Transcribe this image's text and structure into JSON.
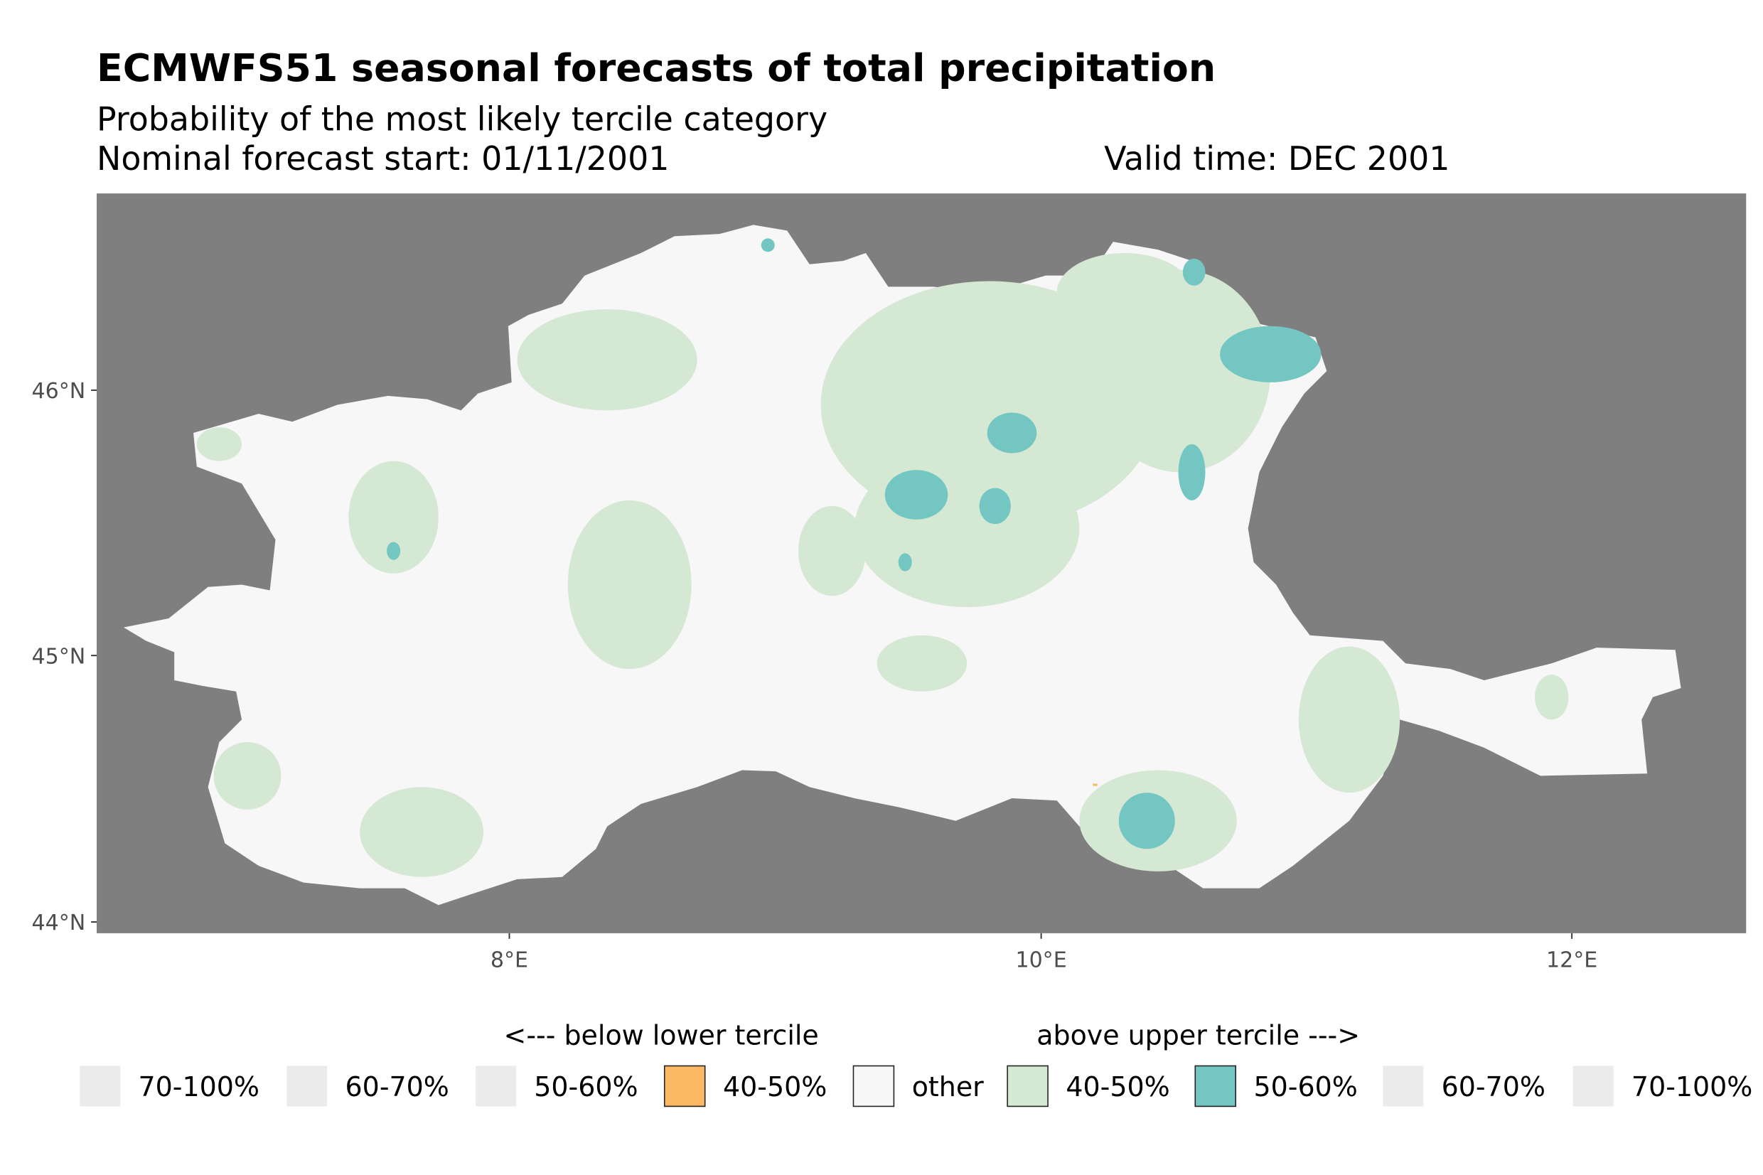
{
  "title": "ECMWFS51 seasonal forecasts of total precipitation",
  "subtitle": "Probability of the most likely tercile category",
  "forecast_start": "Nominal forecast start: 01/11/2001",
  "valid_time": "Valid time: DEC 2001",
  "chart_data": {
    "type": "heatmap",
    "title": "ECMWFS51 seasonal forecasts of total precipitation",
    "xlabel": "",
    "ylabel": "",
    "x_ticks": [
      "8°E",
      "10°E",
      "12°E"
    ],
    "y_ticks": [
      "46°N",
      "45°N",
      "44°N"
    ],
    "x_tick_values": [
      8,
      10,
      12
    ],
    "y_tick_values": [
      46,
      45,
      44
    ],
    "xlim": [
      6.45,
      12.65
    ],
    "ylim": [
      43.95,
      46.72
    ],
    "background_color": "#7f7f7f",
    "legend": {
      "placement": "bottom",
      "below_title": "<--- below lower tercile",
      "above_title": "above upper tercile --->",
      "entries": [
        {
          "label": "70-100%",
          "color": "#ebebeb",
          "group": "below"
        },
        {
          "label": "60-70%",
          "color": "#ebebeb",
          "group": "below"
        },
        {
          "label": "50-60%",
          "color": "#ebebeb",
          "group": "below"
        },
        {
          "label": "40-50%",
          "color": "#fdb863",
          "group": "below"
        },
        {
          "label": "other",
          "color": "#f7f7f7",
          "group": "normal"
        },
        {
          "label": "40-50%",
          "color": "#d5e8d4",
          "group": "above"
        },
        {
          "label": "50-60%",
          "color": "#73c6c1",
          "group": "above"
        },
        {
          "label": "60-70%",
          "color": "#ebebeb",
          "group": "above"
        },
        {
          "label": "70-100%",
          "color": "#ebebeb",
          "group": "above"
        }
      ]
    }
  }
}
